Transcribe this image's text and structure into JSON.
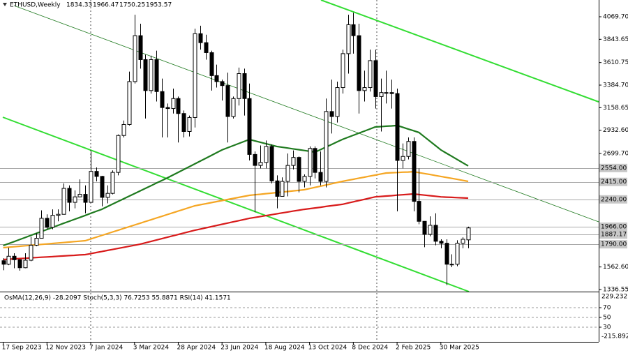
{
  "chart_data": [
    {
      "type": "candlestick",
      "symbol": "ETHUSD,Weekly",
      "categories": [
        "17 Sep 2023",
        null,
        null,
        null,
        null,
        null,
        null,
        null,
        "12 Nov 2023",
        null,
        null,
        null,
        null,
        null,
        null,
        null,
        "7 Jan 2024",
        null,
        null,
        null,
        null,
        null,
        null,
        null,
        "3 Mar 2024",
        null,
        null,
        null,
        null,
        null,
        null,
        null,
        "28 Apr 2024",
        null,
        null,
        null,
        null,
        null,
        null,
        null,
        "23 Jun 2024",
        null,
        null,
        null,
        null,
        null,
        null,
        null,
        "18 Aug 2024",
        null,
        null,
        null,
        null,
        null,
        null,
        null,
        "13 Oct 2024",
        null,
        null,
        null,
        null,
        null,
        null,
        null,
        "8 Dec 2024",
        null,
        null,
        null,
        null,
        null,
        null,
        null,
        "2 Feb 2025",
        null,
        null,
        null,
        null,
        null,
        null,
        null,
        "30 Mar 2025",
        null,
        null,
        null,
        null,
        null
      ],
      "open": [
        1625,
        1590,
        1670,
        1635,
        1555,
        1630,
        1780,
        1850,
        2050,
        1960,
        2080,
        2090,
        2350,
        2210,
        2265,
        2290,
        2210,
        2520,
        2470,
        2260,
        2300,
        2510,
        2880,
        2990,
        3420,
        3880,
        3640,
        3330,
        3640,
        3320,
        3160,
        3150,
        3250,
        3100,
        2920,
        3060,
        3900,
        3810,
        3710,
        3480,
        3420,
        3380,
        3070,
        3250,
        3500,
        3250,
        2690,
        2580,
        2610,
        2770,
        2425,
        2270,
        2420,
        2580,
        2660,
        2420,
        2470,
        2750,
        2510,
        2420,
        3120,
        3070,
        3360,
        3700,
        3990,
        3880,
        3330,
        3360,
        3630,
        3270,
        3310,
        3310,
        3300,
        2630,
        2670,
        2820,
        2220,
        2020,
        1890,
        1980,
        1820,
        1800,
        1590,
        1590,
        1800,
        1834.33
      ],
      "high": [
        1650,
        1755,
        1700,
        1640,
        1700,
        1865,
        1900,
        2130,
        2090,
        2140,
        2140,
        2400,
        2380,
        2330,
        2440,
        2380,
        2720,
        2560,
        2475,
        2380,
        2530,
        2890,
        3030,
        3520,
        4090,
        4000,
        3690,
        3680,
        3730,
        3450,
        3200,
        3350,
        3270,
        3130,
        3080,
        3950,
        3980,
        3890,
        3730,
        3590,
        3440,
        3510,
        3270,
        3560,
        3550,
        3400,
        2720,
        2780,
        2830,
        2790,
        2480,
        2460,
        2700,
        2730,
        2670,
        2490,
        2770,
        2770,
        2720,
        3250,
        3440,
        3420,
        3740,
        4090,
        4110,
        4000,
        3530,
        3740,
        3740,
        3450,
        3530,
        3440,
        3350,
        2800,
        2860,
        2860,
        2550,
        2020,
        2070,
        2100,
        1840,
        1840,
        1690,
        1830,
        1860,
        1966.47
      ],
      "low": [
        1530,
        1580,
        1550,
        1525,
        1550,
        1620,
        1770,
        1850,
        1940,
        1940,
        2020,
        2090,
        2120,
        2150,
        2260,
        2100,
        2210,
        2420,
        2170,
        2200,
        2290,
        2480,
        2860,
        2980,
        3400,
        3550,
        3050,
        3300,
        3220,
        2860,
        2860,
        3100,
        2810,
        2860,
        2870,
        2960,
        3740,
        3640,
        3330,
        3360,
        3230,
        2810,
        3050,
        3180,
        3080,
        2630,
        2110,
        2550,
        2550,
        2400,
        2150,
        2270,
        2270,
        2540,
        2310,
        2360,
        2380,
        2450,
        2380,
        2360,
        2900,
        3010,
        3300,
        3500,
        3700,
        3100,
        3220,
        3320,
        3150,
        2920,
        3200,
        3150,
        2120,
        2550,
        2640,
        2120,
        1990,
        1760,
        1870,
        1780,
        1750,
        1380,
        1560,
        1570,
        1750,
        1750.25
      ],
      "close": [
        1590,
        1670,
        1635,
        1555,
        1630,
        1780,
        1850,
        2050,
        1960,
        2080,
        2090,
        2350,
        2210,
        2265,
        2290,
        2210,
        2520,
        2470,
        2260,
        2300,
        2510,
        2880,
        2990,
        3420,
        3880,
        3640,
        3330,
        3640,
        3320,
        3160,
        3150,
        3250,
        3100,
        2920,
        3060,
        3900,
        3810,
        3710,
        3480,
        3420,
        3380,
        3070,
        3250,
        3500,
        3250,
        2690,
        2580,
        2610,
        2770,
        2425,
        2270,
        2420,
        2580,
        2660,
        2420,
        2470,
        2750,
        2510,
        2420,
        3120,
        3070,
        3360,
        3700,
        3990,
        3880,
        3330,
        3360,
        3630,
        3270,
        3310,
        3310,
        3300,
        2630,
        2670,
        2820,
        2220,
        2020,
        1890,
        1980,
        1820,
        1800,
        1590,
        1590,
        1800,
        1840,
        1953.57
      ],
      "up_color": "#ffffff",
      "down_color": "#000000",
      "wick_color": "#000000",
      "series": [
        {
          "color": "#1f7a1f",
          "values": [
            1777,
            1797,
            1817,
            1837,
            1857,
            1878,
            1898,
            1918,
            1938,
            1958,
            1979,
            1999,
            2019,
            2039,
            2059,
            2079,
            2100,
            2120,
            2140,
            2166,
            2193,
            2219,
            2245,
            2271,
            2298,
            2324,
            2350,
            2376,
            2403,
            2429,
            2455,
            2483,
            2511,
            2539,
            2567,
            2595,
            2623,
            2651,
            2679,
            2707,
            2735,
            2756,
            2777,
            2798,
            2819,
            2840,
            2826,
            2812,
            2798,
            2784,
            2770,
            2762,
            2754,
            2746,
            2738,
            2730,
            2722,
            2713,
            2738,
            2764,
            2789,
            2815,
            2840,
            2861,
            2882,
            2903,
            2923,
            2944,
            2965,
            2969,
            2973,
            2976,
            2980,
            2963,
            2945,
            2928,
            2910,
            2866,
            2823,
            2779,
            2735,
            2703,
            2671,
            2639,
            2607,
            2575
          ]
        },
        {
          "color": "#f5a623",
          "values": [
            1756,
            1761,
            1765,
            1770,
            1775,
            1779,
            1784,
            1789,
            1793,
            1798,
            1803,
            1807,
            1812,
            1817,
            1821,
            1826,
            1843,
            1861,
            1878,
            1896,
            1913,
            1930,
            1948,
            1965,
            1983,
            2000,
            2018,
            2035,
            2053,
            2070,
            2088,
            2105,
            2123,
            2140,
            2158,
            2175,
            2186,
            2196,
            2207,
            2217,
            2228,
            2238,
            2249,
            2259,
            2270,
            2280,
            2286,
            2291,
            2297,
            2302,
            2308,
            2314,
            2319,
            2325,
            2330,
            2336,
            2348,
            2360,
            2372,
            2384,
            2396,
            2408,
            2420,
            2431,
            2441,
            2452,
            2462,
            2473,
            2483,
            2494,
            2504,
            2507,
            2509,
            2512,
            2514,
            2517,
            2508,
            2498,
            2489,
            2479,
            2470,
            2460,
            2450,
            2440,
            2430,
            2420
          ]
        },
        {
          "color": "#d81b1b",
          "values": [
            1637,
            1640,
            1644,
            1647,
            1650,
            1653,
            1657,
            1660,
            1663,
            1666,
            1670,
            1673,
            1676,
            1679,
            1683,
            1686,
            1696,
            1707,
            1717,
            1728,
            1738,
            1748,
            1759,
            1769,
            1780,
            1790,
            1804,
            1818,
            1832,
            1846,
            1860,
            1874,
            1888,
            1902,
            1916,
            1930,
            1942,
            1954,
            1966,
            1978,
            1990,
            2002,
            2014,
            2026,
            2038,
            2050,
            2059,
            2068,
            2077,
            2086,
            2095,
            2104,
            2113,
            2122,
            2131,
            2140,
            2147,
            2154,
            2161,
            2169,
            2176,
            2183,
            2190,
            2203,
            2215,
            2228,
            2240,
            2253,
            2265,
            2269,
            2273,
            2277,
            2282,
            2286,
            2290,
            2294,
            2288,
            2282,
            2277,
            2271,
            2265,
            2262,
            2260,
            2257,
            2255,
            2252
          ]
        }
      ],
      "levels": [
        {
          "value": 2554,
          "label": "2554.00"
        },
        {
          "value": 2415,
          "label": "2415.00"
        },
        {
          "value": 2240,
          "label": "2240.00"
        },
        {
          "value": 1966,
          "label": "1966.00"
        },
        {
          "value": 1887.17,
          "label": "1887.17"
        },
        {
          "value": 1790,
          "label": "1790.00"
        }
      ],
      "ylim": [
        1315.6,
        4237.5
      ],
      "yticks": [
        {
          "value": 4069.7,
          "label": "4069.70"
        },
        3843.65,
        3610.75,
        {
          "value": 3384.7,
          "label": "3384.70"
        },
        3158.65,
        {
          "value": 2932.6,
          "label": "2932.60"
        },
        {
          "value": 2699.7,
          "label": "2699.70"
        },
        {
          "value": 1562.6,
          "label": "1562.60"
        },
        1336.55
      ]
    },
    {
      "type": "indicator",
      "title": "OsMA(12,26,9) -28.2097  Stoch(5,3,3) 76.7253 55.8871  RSI(14) 41.1571",
      "ylim": [
        0,
        100
      ],
      "yticks": [
        30,
        50,
        70
      ],
      "osma_range": [
        -215.8927,
        229.2327
      ]
    }
  ]
}
